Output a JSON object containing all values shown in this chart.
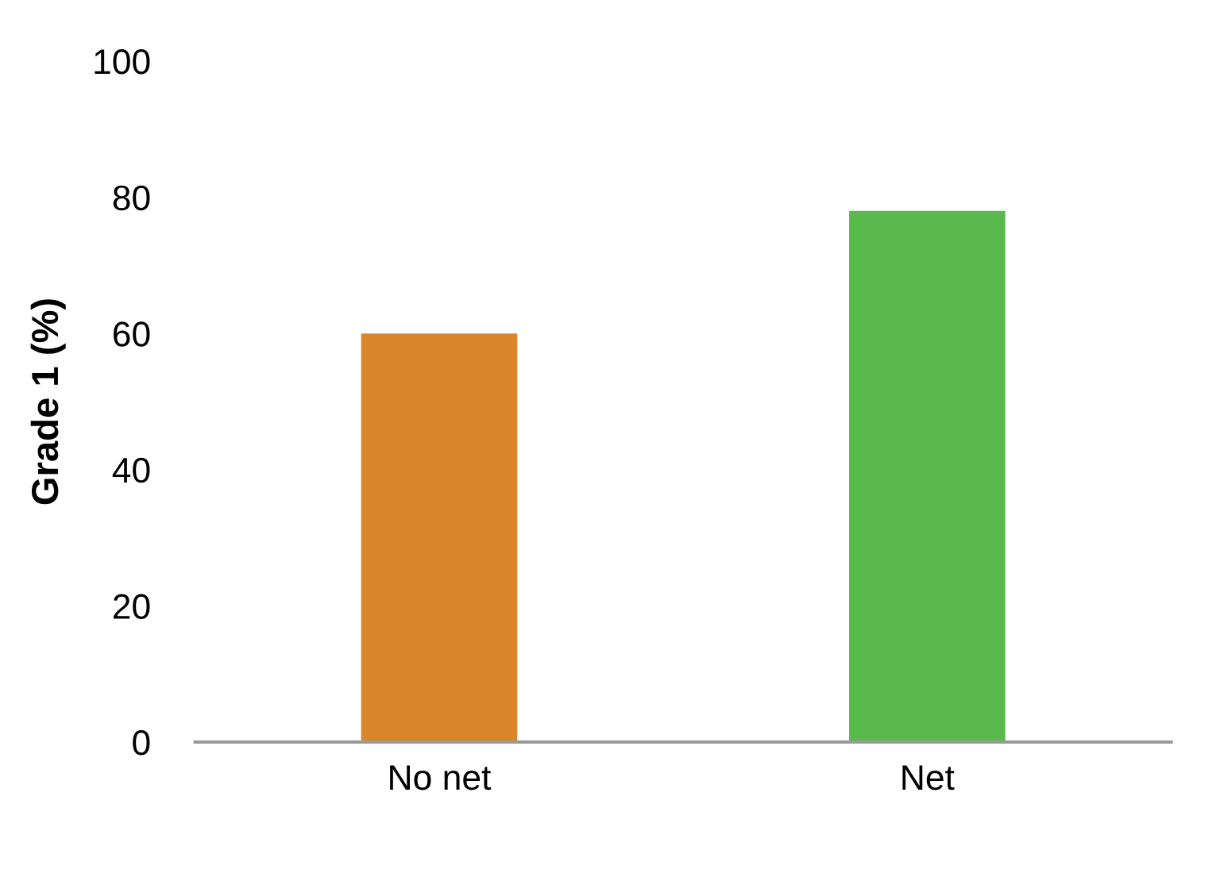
{
  "chart_data": {
    "type": "bar",
    "ylabel": "Grade 1 (%)",
    "categories": [
      "No net",
      "Net"
    ],
    "values": [
      60,
      78
    ],
    "colors": [
      "#d9862b",
      "#5ab94c"
    ],
    "ylim": [
      0,
      100
    ],
    "yticks": [
      0,
      20,
      40,
      60,
      80,
      100
    ],
    "grid": false
  }
}
